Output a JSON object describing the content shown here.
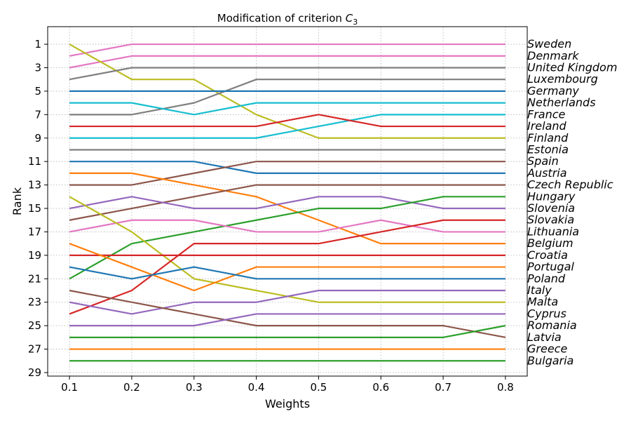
{
  "chart_data": {
    "type": "line",
    "title_prefix": "Modification of criterion ",
    "title_symbol": "C",
    "title_subscript": "3",
    "xlabel": "Weights",
    "ylabel": "Rank",
    "x": [
      0.1,
      0.2,
      0.3,
      0.4,
      0.5,
      0.6,
      0.7,
      0.8
    ],
    "x_tick_labels": [
      "0.1",
      "0.2",
      "0.3",
      "0.4",
      "0.5",
      "0.6",
      "0.7",
      "0.8"
    ],
    "y_ticks": [
      1,
      3,
      5,
      7,
      9,
      11,
      13,
      15,
      17,
      19,
      21,
      23,
      25,
      27,
      29
    ],
    "y_tick_labels": [
      "1",
      "3",
      "5",
      "7",
      "9",
      "11",
      "13",
      "15",
      "17",
      "19",
      "21",
      "23",
      "25",
      "27",
      "29"
    ],
    "xlim": [
      0.065,
      0.835
    ],
    "ylim": [
      29.3,
      -0.5
    ],
    "y_inverted": true,
    "grid": true,
    "right_labels": [
      "Sweden",
      "Denmark",
      "United Kingdom",
      "Luxembourg",
      "Germany",
      "Netherlands",
      "France",
      "Ireland",
      "Finland",
      "Estonia",
      "Spain",
      "Austria",
      "Czech Republic",
      "Hungary",
      "Slovenia",
      "Slovakia",
      "Lithuania",
      "Belgium",
      "Croatia",
      "Portugal",
      "Poland",
      "Italy",
      "Malta",
      "Cyprus",
      "Romania",
      "Latvia",
      "Greece",
      "Bulgaria"
    ],
    "series": [
      {
        "color": "#e377c2",
        "values": [
          2,
          1,
          1,
          1,
          1,
          1,
          1,
          1
        ]
      },
      {
        "color": "#e377c2",
        "values": [
          3,
          2,
          2,
          2,
          2,
          2,
          2,
          2
        ]
      },
      {
        "color": "#bcbd22",
        "values": [
          1,
          4,
          4,
          7,
          9,
          9,
          9,
          9
        ]
      },
      {
        "color": "#7f7f7f",
        "values": [
          4,
          3,
          3,
          3,
          3,
          3,
          3,
          3
        ]
      },
      {
        "color": "#7f7f7f",
        "values": [
          7,
          7,
          6,
          4,
          4,
          4,
          4,
          4
        ]
      },
      {
        "color": "#1f77b4",
        "values": [
          5,
          5,
          5,
          5,
          5,
          5,
          5,
          5
        ]
      },
      {
        "color": "#17becf",
        "values": [
          6,
          6,
          7,
          6,
          6,
          6,
          6,
          6
        ]
      },
      {
        "color": "#17becf",
        "values": [
          9,
          9,
          9,
          9,
          8,
          7,
          7,
          7
        ]
      },
      {
        "color": "#d62728",
        "values": [
          8,
          8,
          8,
          8,
          7,
          8,
          8,
          8
        ]
      },
      {
        "color": "#7f7f7f",
        "values": [
          10,
          10,
          10,
          10,
          10,
          10,
          10,
          10
        ]
      },
      {
        "color": "#1f77b4",
        "values": [
          11,
          11,
          11,
          12,
          12,
          12,
          12,
          12
        ]
      },
      {
        "color": "#8c564b",
        "values": [
          13,
          13,
          12,
          11,
          11,
          11,
          11,
          11
        ]
      },
      {
        "color": "#ff7f0e",
        "values": [
          12,
          12,
          13,
          14,
          16,
          18,
          18,
          18
        ]
      },
      {
        "color": "#8c564b",
        "values": [
          16,
          15,
          14,
          13,
          13,
          13,
          13,
          13
        ]
      },
      {
        "color": "#9467bd",
        "values": [
          15,
          14,
          15,
          15,
          14,
          14,
          15,
          15
        ]
      },
      {
        "color": "#2ca02c",
        "values": [
          21,
          18,
          17,
          16,
          15,
          15,
          14,
          14
        ]
      },
      {
        "color": "#e377c2",
        "values": [
          17,
          16,
          16,
          17,
          17,
          16,
          17,
          17
        ]
      },
      {
        "color": "#bcbd22",
        "values": [
          14,
          17,
          21,
          22,
          23,
          23,
          23,
          23
        ]
      },
      {
        "color": "#d62728",
        "values": [
          19,
          19,
          19,
          19,
          19,
          19,
          19,
          19
        ]
      },
      {
        "color": "#d62728",
        "values": [
          24,
          22,
          18,
          18,
          18,
          17,
          16,
          16
        ]
      },
      {
        "color": "#ff7f0e",
        "values": [
          18,
          20,
          22,
          20,
          20,
          20,
          20,
          20
        ]
      },
      {
        "color": "#1f77b4",
        "values": [
          20,
          21,
          20,
          21,
          21,
          21,
          21,
          21
        ]
      },
      {
        "color": "#9467bd",
        "values": [
          23,
          24,
          23,
          23,
          22,
          22,
          22,
          22
        ]
      },
      {
        "color": "#8c564b",
        "values": [
          22,
          23,
          24,
          25,
          25,
          25,
          25,
          26
        ]
      },
      {
        "color": "#9467bd",
        "values": [
          25,
          25,
          25,
          24,
          24,
          24,
          24,
          24
        ]
      },
      {
        "color": "#2ca02c",
        "values": [
          26,
          26,
          26,
          26,
          26,
          26,
          26,
          25
        ]
      },
      {
        "color": "#ff7f0e",
        "values": [
          27,
          27,
          27,
          27,
          27,
          27,
          27,
          27
        ]
      },
      {
        "color": "#2ca02c",
        "values": [
          28,
          28,
          28,
          28,
          28,
          28,
          28,
          28
        ]
      }
    ]
  }
}
